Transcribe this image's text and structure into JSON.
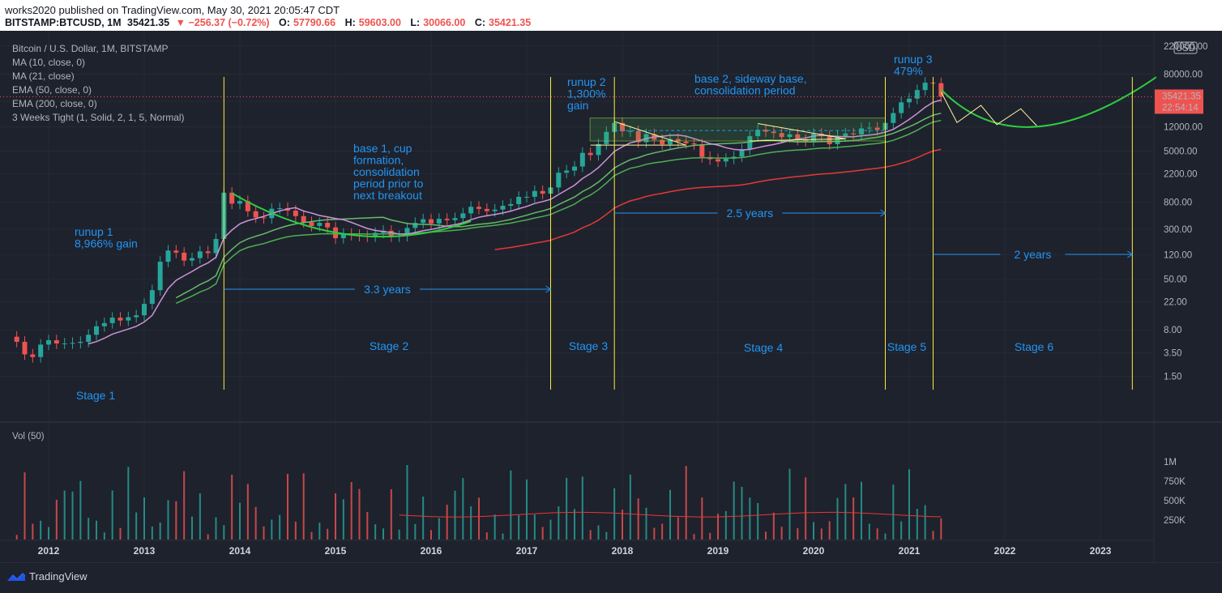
{
  "header": {
    "published": "works2020 published on TradingView.com, May 30, 2021 20:05:47 CDT",
    "symbol": "BITSTAMP:BTCUSD, 1M",
    "last": "35421.35",
    "change": "−256.37 (−0.72%)",
    "o_label": "O:",
    "o_value": "57790.66",
    "h_label": "H:",
    "h_value": "59603.00",
    "l_label": "L:",
    "l_value": "30066.00",
    "c_label": "C:",
    "c_value": "35421.35"
  },
  "legend": [
    "Bitcoin / U.S. Dollar, 1M, BITSTAMP",
    "MA (10, close, 0)",
    "MA (21, close)",
    "EMA (50, close, 0)",
    "EMA (200, close, 0)",
    "3 Weeks Tight (1, Solid, 2, 1, 5, Normal)"
  ],
  "vol_label": "Vol (50)",
  "currency": "USD",
  "price_label": "35421.35",
  "countdown": "22:54:14",
  "brand": "TradingView",
  "colors": {
    "background": "#1e222d",
    "up": "#26a69a",
    "down": "#ef5350",
    "annotation": "#2196f3",
    "stage_line": "#ffeb3b",
    "ma10": "#ce93d8",
    "ma21": "#66bb6a",
    "ema50": "#4caf50",
    "ema200": "#e53935",
    "projection": "#2ecc40"
  },
  "annotations": {
    "runup1": [
      "runup 1",
      "8,966% gain"
    ],
    "base1": [
      "base 1, cup",
      "formation,",
      "consolidation",
      "period prior to",
      "next breakout"
    ],
    "runup2": [
      "runup 2",
      "1,300%",
      "gain"
    ],
    "base2": [
      "base 2, sideway base,",
      "consolidation period"
    ],
    "runup3": [
      "runup 3",
      "479%"
    ],
    "dur1": "3.3 years",
    "dur2": "2.5 years",
    "dur3": "2 years",
    "stages": [
      "Stage 1",
      "Stage 2",
      "Stage 3",
      "Stage 4",
      "Stage 5",
      "Stage 6"
    ]
  },
  "chart_data": {
    "type": "candlestick",
    "title": "Bitcoin / U.S. Dollar, 1M, BITSTAMP",
    "y_scale": "log",
    "y_ticks": [
      "220000.00",
      "80000.00",
      "30000.00",
      "12000.00",
      "5000.00",
      "2200.00",
      "800.00",
      "300.00",
      "120.00",
      "50.00",
      "22.00",
      "8.00",
      "3.50",
      "1.50"
    ],
    "y_tick_values": [
      220000,
      80000,
      30000,
      12000,
      5000,
      2200,
      800,
      300,
      120,
      50,
      22,
      8,
      3.5,
      1.5
    ],
    "x_ticks": [
      "2012",
      "2013",
      "2014",
      "2015",
      "2016",
      "2017",
      "2018",
      "2019",
      "2020",
      "2021",
      "2022",
      "2023"
    ],
    "vol_ticks": [
      "1M",
      "750K",
      "500K",
      "250K"
    ],
    "vol_tick_values": [
      1000000,
      750000,
      500000,
      250000
    ],
    "stage_lines": [
      "2013-11",
      "2017-04",
      "2017-12",
      "2020-10",
      "2021-04",
      "2023-05"
    ],
    "close_series": [
      [
        "2011-09",
        5.2
      ],
      [
        "2011-10",
        3.3
      ],
      [
        "2011-11",
        3.0
      ],
      [
        "2011-12",
        4.7
      ],
      [
        "2012-01",
        5.5
      ],
      [
        "2012-02",
        4.9
      ],
      [
        "2012-03",
        4.9
      ],
      [
        "2012-04",
        5.0
      ],
      [
        "2012-05",
        5.2
      ],
      [
        "2012-06",
        6.7
      ],
      [
        "2012-07",
        9.1
      ],
      [
        "2012-08",
        10.2
      ],
      [
        "2012-09",
        12.4
      ],
      [
        "2012-10",
        11.2
      ],
      [
        "2012-11",
        12.6
      ],
      [
        "2012-12",
        13.5
      ],
      [
        "2013-01",
        20.4
      ],
      [
        "2013-02",
        33.4
      ],
      [
        "2013-03",
        93.0
      ],
      [
        "2013-04",
        139.0
      ],
      [
        "2013-05",
        129.0
      ],
      [
        "2013-06",
        97.0
      ],
      [
        "2013-07",
        106.0
      ],
      [
        "2013-08",
        135.0
      ],
      [
        "2013-09",
        127.0
      ],
      [
        "2013-10",
        211.0
      ],
      [
        "2013-11",
        1120.0
      ],
      [
        "2013-12",
        754.0
      ],
      [
        "2014-01",
        829.0
      ],
      [
        "2014-02",
        573.0
      ],
      [
        "2014-03",
        458.0
      ],
      [
        "2014-04",
        447.0
      ],
      [
        "2014-05",
        628.0
      ],
      [
        "2014-06",
        640.0
      ],
      [
        "2014-07",
        586.0
      ],
      [
        "2014-08",
        481.0
      ],
      [
        "2014-09",
        387.0
      ],
      [
        "2014-10",
        338.0
      ],
      [
        "2014-11",
        378.0
      ],
      [
        "2014-12",
        320.0
      ],
      [
        "2015-01",
        217.0
      ],
      [
        "2015-02",
        254.0
      ],
      [
        "2015-03",
        244.0
      ],
      [
        "2015-04",
        236.0
      ],
      [
        "2015-05",
        230.0
      ],
      [
        "2015-06",
        263.0
      ],
      [
        "2015-07",
        284.0
      ],
      [
        "2015-08",
        230.0
      ],
      [
        "2015-09",
        236.0
      ],
      [
        "2015-10",
        314.0
      ],
      [
        "2015-11",
        377.0
      ],
      [
        "2015-12",
        430.0
      ],
      [
        "2016-01",
        369.0
      ],
      [
        "2016-02",
        437.0
      ],
      [
        "2016-03",
        416.0
      ],
      [
        "2016-04",
        448.0
      ],
      [
        "2016-05",
        531.0
      ],
      [
        "2016-06",
        673.0
      ],
      [
        "2016-07",
        624.0
      ],
      [
        "2016-08",
        575.0
      ],
      [
        "2016-09",
        609.0
      ],
      [
        "2016-10",
        698.0
      ],
      [
        "2016-11",
        742.0
      ],
      [
        "2016-12",
        963.0
      ],
      [
        "2017-01",
        965.0
      ],
      [
        "2017-02",
        1190.0
      ],
      [
        "2017-03",
        1080.0
      ],
      [
        "2017-04",
        1350.0
      ],
      [
        "2017-05",
        2300.0
      ],
      [
        "2017-06",
        2480.0
      ],
      [
        "2017-07",
        2870.0
      ],
      [
        "2017-08",
        4700.0
      ],
      [
        "2017-09",
        4340.0
      ],
      [
        "2017-10",
        6440.0
      ],
      [
        "2017-11",
        10000.0
      ],
      [
        "2017-12",
        13800.0
      ],
      [
        "2018-01",
        10200.0
      ],
      [
        "2018-02",
        10300.0
      ],
      [
        "2018-03",
        6900.0
      ],
      [
        "2018-04",
        9240.0
      ],
      [
        "2018-05",
        7490.0
      ],
      [
        "2018-06",
        6390.0
      ],
      [
        "2018-07",
        7730.0
      ],
      [
        "2018-08",
        7030.0
      ],
      [
        "2018-09",
        6630.0
      ],
      [
        "2018-10",
        6370.0
      ],
      [
        "2018-11",
        4040.0
      ],
      [
        "2018-12",
        3740.0
      ],
      [
        "2019-01",
        3440.0
      ],
      [
        "2019-02",
        3810.0
      ],
      [
        "2019-03",
        4100.0
      ],
      [
        "2019-04",
        5320.0
      ],
      [
        "2019-05",
        8560.0
      ],
      [
        "2019-06",
        10820.0
      ],
      [
        "2019-07",
        10090.0
      ],
      [
        "2019-08",
        9590.0
      ],
      [
        "2019-09",
        8300.0
      ],
      [
        "2019-10",
        9150.0
      ],
      [
        "2019-11",
        7550.0
      ],
      [
        "2019-12",
        7190.0
      ],
      [
        "2020-01",
        9390.0
      ],
      [
        "2020-02",
        8540.0
      ],
      [
        "2020-03",
        6420.0
      ],
      [
        "2020-04",
        8630.0
      ],
      [
        "2020-05",
        9450.0
      ],
      [
        "2020-06",
        9140.0
      ],
      [
        "2020-07",
        11350.0
      ],
      [
        "2020-08",
        11660.0
      ],
      [
        "2020-09",
        10780.0
      ],
      [
        "2020-10",
        13800.0
      ],
      [
        "2020-11",
        19700.0
      ],
      [
        "2020-12",
        28990.0
      ],
      [
        "2021-01",
        33110.0
      ],
      [
        "2021-02",
        45160.0
      ],
      [
        "2021-03",
        58800.0
      ],
      [
        "2021-04",
        57790.0
      ],
      [
        "2021-05",
        35421.35
      ]
    ]
  }
}
